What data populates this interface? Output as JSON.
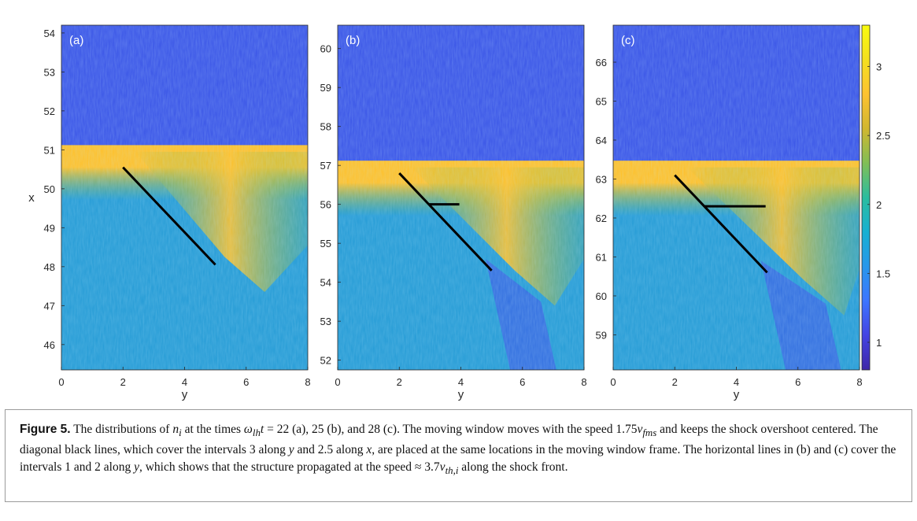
{
  "chart_data": {
    "type": "heatmap",
    "colormap": "parula",
    "colorbar": {
      "range": [
        0.8,
        3.3
      ],
      "ticks": [
        1,
        1.5,
        2,
        2.5,
        3
      ],
      "tick_labels": [
        "1",
        "1.5",
        "2",
        "2.5",
        "3"
      ],
      "colors": [
        "#3e26a8",
        "#4443e3",
        "#3e75ff",
        "#2797eb",
        "#17b0d2",
        "#2bbd9f",
        "#81be56",
        "#d1b72f",
        "#fdc231",
        "#f4e01f",
        "#f9fb0e"
      ]
    },
    "panels": [
      {
        "label": "(a)",
        "xlabel": "y",
        "ylabel": "x",
        "xlim": [
          0,
          8
        ],
        "ylim": [
          45.35,
          54.2
        ],
        "xticks": [
          0,
          2,
          4,
          6,
          8
        ],
        "xtick_labels": [
          "0",
          "2",
          "4",
          "6",
          "8"
        ],
        "yticks": [
          46,
          47,
          48,
          49,
          50,
          51,
          52,
          53,
          54
        ],
        "ytick_labels": [
          "46",
          "47",
          "48",
          "49",
          "50",
          "51",
          "52",
          "53",
          "54"
        ],
        "front": 51.0,
        "lines": [
          {
            "kind": "diagonal",
            "x": [
              2,
              5
            ],
            "y": [
              50.55,
              48.05
            ]
          }
        ]
      },
      {
        "label": "(b)",
        "xlabel": "y",
        "ylabel": "",
        "xlim": [
          0,
          8
        ],
        "ylim": [
          51.75,
          60.6
        ],
        "xticks": [
          0,
          2,
          4,
          6,
          8
        ],
        "xtick_labels": [
          "0",
          "2",
          "4",
          "6",
          "8"
        ],
        "yticks": [
          52,
          53,
          54,
          55,
          56,
          57,
          58,
          59,
          60
        ],
        "ytick_labels": [
          "52",
          "53",
          "54",
          "55",
          "56",
          "57",
          "58",
          "59",
          "60"
        ],
        "front": 57.0,
        "lines": [
          {
            "kind": "diagonal",
            "x": [
              2,
              5
            ],
            "y": [
              56.8,
              54.3
            ]
          },
          {
            "kind": "horizontal",
            "x": [
              2.95,
              3.95
            ],
            "y": [
              56.0,
              56.0
            ]
          }
        ]
      },
      {
        "label": "(c)",
        "xlabel": "y",
        "ylabel": "",
        "xlim": [
          0,
          8
        ],
        "ylim": [
          58.1,
          66.95
        ],
        "xticks": [
          0,
          2,
          4,
          6,
          8
        ],
        "xtick_labels": [
          "0",
          "2",
          "4",
          "6",
          "8"
        ],
        "yticks": [
          59,
          60,
          61,
          62,
          63,
          64,
          65,
          66
        ],
        "ytick_labels": [
          "59",
          "60",
          "61",
          "62",
          "63",
          "64",
          "65",
          "66"
        ],
        "front": 63.35,
        "lines": [
          {
            "kind": "diagonal",
            "x": [
              2,
              5
            ],
            "y": [
              63.1,
              60.6
            ]
          },
          {
            "kind": "horizontal",
            "x": [
              2.95,
              4.95
            ],
            "y": [
              62.3,
              62.3
            ]
          }
        ]
      }
    ]
  },
  "caption": {
    "label": "Figure 5.",
    "text": "The distributions of n_i at the times ω_lh t = 22 (a), 25 (b), and 28 (c). The moving window moves with the speed 1.75v_fms and keeps the shock overshoot centered. The diagonal black lines, which cover the intervals 3 along y and 2.5 along x, are placed at the same locations in the moving window frame. The horizontal lines in (b) and (c) cover the intervals 1 and 2 along y, which shows that the structure propagated at the speed ≈ 3.7v_th,i along the shock front."
  }
}
